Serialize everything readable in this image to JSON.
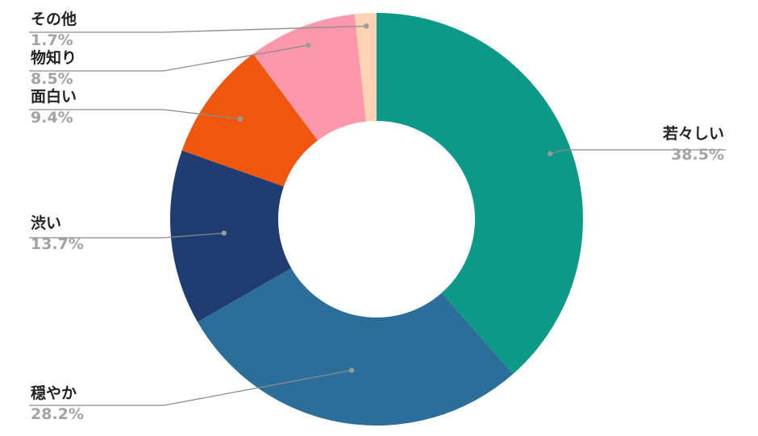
{
  "chart_data": {
    "type": "pie",
    "variant": "donut",
    "legend": "none",
    "slices": [
      {
        "label": "若々しい",
        "value": 38.5,
        "value_label": "38.5%",
        "color": "#0c9988"
      },
      {
        "label": "穏やか",
        "value": 28.2,
        "value_label": "28.2%",
        "color": "#2a6e99"
      },
      {
        "label": "渋い",
        "value": 13.7,
        "value_label": "13.7%",
        "color": "#1f3d73"
      },
      {
        "label": "面白い",
        "value": 9.4,
        "value_label": "9.4%",
        "color": "#ef570f"
      },
      {
        "label": "物知り",
        "value": 8.5,
        "value_label": "8.5%",
        "color": "#fd97ab"
      },
      {
        "label": "その他",
        "value": 1.7,
        "value_label": "1.7%",
        "color": "#fed2b3"
      }
    ]
  }
}
